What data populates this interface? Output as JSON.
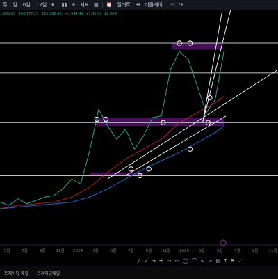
{
  "toolbar": {
    "timeframes": [
      "주",
      "일",
      "6일",
      "12일"
    ],
    "indicators_label": "지표",
    "alert_label": "얼러트",
    "replay_label": "리플레이"
  },
  "ohlc": {
    "open": "1,880.00",
    "high": "106,177.27",
    "low": "111,188.40",
    "change": "+1,544.41 (+1.45%)",
    "volume": "22.58 K"
  },
  "bottom_tabs": [
    "트레이딩 패널",
    "트레이딩패널"
  ],
  "drawing_tools": [
    "long-arrow",
    "ray",
    "arrow-line",
    "cross",
    "horizontal-ray",
    "rectangle",
    "circle",
    "curve",
    "wave",
    "measure",
    "ruler",
    "text",
    "flag",
    "trend"
  ],
  "colors": {
    "candle_up": "#26a69a",
    "candle_down": "#ef5350",
    "ma_red": "#b71c1c",
    "ma_blue": "#1565c0",
    "trendline": "#ffffff",
    "zone": "#7b1fa2"
  },
  "chart_data": {
    "type": "line",
    "title": "",
    "xlabel": "",
    "ylabel": "",
    "x_ticks": [
      "5월",
      "7월",
      "9월",
      "11월",
      "2024",
      "3월",
      "5월",
      "7월",
      "9월",
      "11월",
      "2025",
      "3월",
      "5월",
      "7월",
      "9월",
      "11월"
    ],
    "xlim": [
      0,
      31
    ],
    "ylim": [
      0,
      100
    ],
    "grid": false,
    "legend": "none",
    "series": [
      {
        "x": [
          0,
          1,
          2,
          3,
          4,
          5,
          6,
          7,
          8,
          9,
          10,
          11,
          12,
          13,
          14,
          15,
          16,
          17,
          18,
          19,
          20,
          21,
          22,
          23,
          24,
          25
        ],
        "values": [
          4,
          2,
          6,
          3,
          5,
          7,
          8,
          12,
          18,
          15,
          35,
          60,
          50,
          42,
          48,
          36,
          44,
          55,
          56,
          84,
          95,
          90,
          74,
          58,
          66,
          96
        ]
      },
      {
        "x": [
          0,
          2,
          4,
          6,
          8,
          10,
          12,
          14,
          16,
          18,
          20,
          22,
          24,
          25
        ],
        "values": [
          0,
          2,
          3,
          4,
          7,
          13,
          22,
          30,
          36,
          42,
          52,
          58,
          64,
          68
        ]
      },
      {
        "x": [
          0,
          2,
          4,
          6,
          8,
          10,
          12,
          14,
          16,
          18,
          20,
          22,
          24,
          25
        ],
        "values": [
          0,
          1,
          2,
          3,
          4,
          7,
          12,
          18,
          24,
          29,
          34,
          40,
          46,
          50
        ]
      }
    ],
    "hlines": [
      100,
      82,
      52,
      20
    ],
    "zones": [
      {
        "x": [
          19.2,
          24.8
        ],
        "y": [
          96,
          100
        ]
      },
      {
        "x": [
          10.6,
          25.0
        ],
        "y": [
          50,
          55
        ]
      },
      {
        "x": [
          10.0,
          16.0
        ],
        "y": [
          20,
          22
        ]
      }
    ],
    "trendlines": [
      {
        "x": [
          12,
          31
        ],
        "y": [
          18,
          84
        ]
      },
      {
        "x": [
          14,
          25.2
        ],
        "y": [
          20,
          56
        ]
      },
      {
        "x": [
          22.6,
          25.5
        ],
        "y": [
          52,
          142
        ]
      },
      {
        "x": [
          22.6,
          25.8
        ],
        "y": [
          52,
          122
        ]
      }
    ],
    "markers": [
      {
        "x": 10.8,
        "y": 54
      },
      {
        "x": 11.8,
        "y": 54
      },
      {
        "x": 14.6,
        "y": 24
      },
      {
        "x": 15.6,
        "y": 20
      },
      {
        "x": 16.6,
        "y": 24
      },
      {
        "x": 18.2,
        "y": 52
      },
      {
        "x": 20.0,
        "y": 100
      },
      {
        "x": 21.2,
        "y": 100
      },
      {
        "x": 23.4,
        "y": 67
      },
      {
        "x": 23.2,
        "y": 52
      },
      {
        "x": 21.2,
        "y": 36
      }
    ]
  }
}
